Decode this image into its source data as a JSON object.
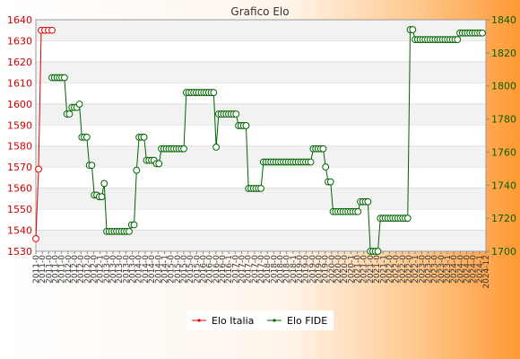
{
  "chart_data": {
    "type": "line",
    "title": "Grafico Elo",
    "xlabel": "",
    "ylabel": "",
    "y_left": {
      "min": 1530,
      "max": 1640,
      "ticks": [
        1530,
        1540,
        1550,
        1560,
        1570,
        1580,
        1590,
        1600,
        1610,
        1620,
        1630,
        1640
      ]
    },
    "y_right": {
      "min": 1700,
      "max": 1840,
      "ticks": [
        1700,
        1720,
        1740,
        1760,
        1780,
        1800,
        1820,
        1840
      ]
    },
    "grid": true,
    "legend_position": "bottom",
    "series": [
      {
        "name": "Elo Italia",
        "axis": "left",
        "color": "#e00000",
        "values": [
          1536,
          1569,
          1635,
          1635,
          1635,
          1635
        ]
      },
      {
        "name": "Elo FIDE",
        "axis": "right",
        "color": "#006400",
        "values": [
          1805,
          1805,
          1805,
          1805,
          1805,
          1805,
          1783,
          1783,
          1787,
          1787,
          1787,
          1789,
          1769,
          1769,
          1769,
          1752,
          1752,
          1734,
          1734,
          1733,
          1733,
          1741,
          1712,
          1712,
          1712,
          1712,
          1712,
          1712,
          1712,
          1712,
          1712,
          1712,
          1716,
          1716,
          1749,
          1769,
          1769,
          1769,
          1755,
          1755,
          1755,
          1755,
          1753,
          1753,
          1762,
          1762,
          1762,
          1762,
          1762,
          1762,
          1762,
          1762,
          1762,
          1762,
          1796,
          1796,
          1796,
          1796,
          1796,
          1796,
          1796,
          1796,
          1796,
          1796,
          1796,
          1796,
          1763,
          1783,
          1783,
          1783,
          1783,
          1783,
          1783,
          1783,
          1783,
          1776,
          1776,
          1776,
          1776,
          1738,
          1738,
          1738,
          1738,
          1738,
          1738,
          1754,
          1754,
          1754,
          1754,
          1754,
          1754,
          1754,
          1754,
          1754,
          1754,
          1754,
          1754,
          1754,
          1754,
          1754,
          1754,
          1754,
          1754,
          1754,
          1754,
          1762,
          1762,
          1762,
          1762,
          1762,
          1751,
          1742,
          1742,
          1724,
          1724,
          1724,
          1724,
          1724,
          1724,
          1724,
          1724,
          1724,
          1724,
          1724,
          1730,
          1730,
          1730,
          1730,
          1700,
          1700,
          1700,
          1700,
          1720,
          1720,
          1720,
          1720,
          1720,
          1720,
          1720,
          1720,
          1720,
          1720,
          1720,
          1720,
          1834,
          1834,
          1828,
          1828,
          1828,
          1828,
          1828,
          1828,
          1828,
          1828,
          1828,
          1828,
          1828,
          1828,
          1828,
          1828,
          1828,
          1828,
          1828,
          1828,
          1832,
          1832,
          1832,
          1832,
          1832,
          1832,
          1832,
          1832,
          1832,
          1832
        ]
      }
    ],
    "x_tick_labels": [
      "2011-0",
      "2011-0",
      "2011-0",
      "2011-0",
      "2011-0",
      "2012-0",
      "2012-0",
      "2012-0",
      "2012-0",
      "2012-0",
      "2012-1",
      "2013-0",
      "2013-0",
      "2013-0",
      "2013-0",
      "2013-0",
      "2014-0",
      "2014-0",
      "2014-0",
      "2014-0",
      "2014-1",
      "2015-0",
      "2015-0",
      "2015-0",
      "2015-0",
      "2015-0",
      "2016-0",
      "2016-0",
      "2016-0",
      "2016-0",
      "2016-1",
      "2017-0",
      "2017-0",
      "2017-0",
      "2017-0",
      "2017-0",
      "2018-0",
      "2018-0",
      "2018-0",
      "2018-0",
      "2018-1",
      "2019-0",
      "2019-0",
      "2019-0",
      "2019-0",
      "2019-0",
      "2020-0",
      "2020-0",
      "2020-0",
      "2020-1",
      "2021-0",
      "2021-0",
      "2021-0",
      "2021-0",
      "2021-1",
      "2022-0",
      "2022-0",
      "2022-0",
      "2022-0",
      "2022-1",
      "2023-0",
      "2023-0",
      "2023-0",
      "2023-0",
      "2023-1",
      "2024-0",
      "2024-0",
      "2024-0",
      "2024-0",
      "2024-1",
      "2024-12"
    ]
  }
}
